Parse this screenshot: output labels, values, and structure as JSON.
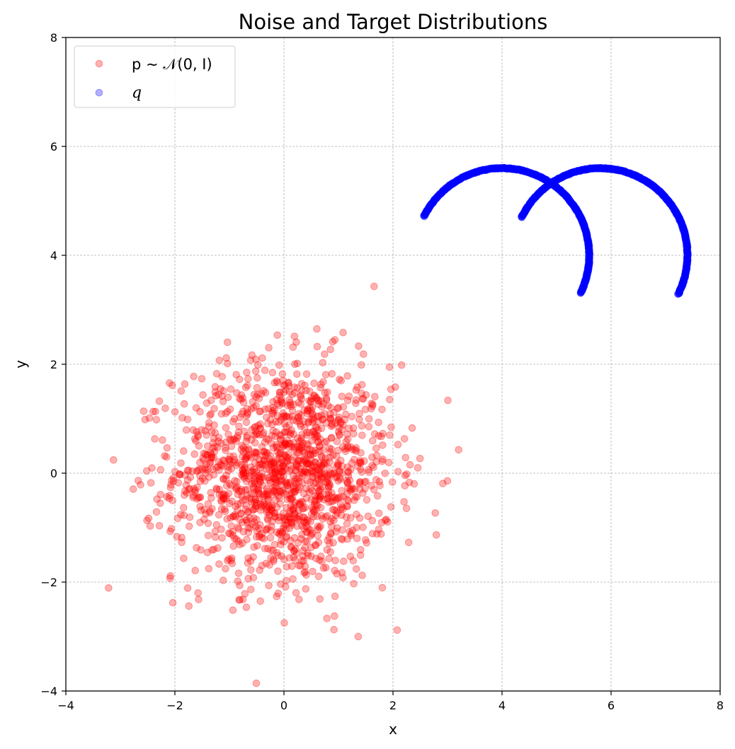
{
  "chart_data": {
    "type": "scatter",
    "title": "Noise and Target Distributions",
    "xlabel": "x",
    "ylabel": "y",
    "xlim": [
      -4,
      8
    ],
    "ylim": [
      -4,
      8
    ],
    "x_ticks": [
      "−4",
      "−2",
      "0",
      "2",
      "4",
      "6",
      "8"
    ],
    "y_ticks": [
      "−4",
      "−2",
      "0",
      "2",
      "4",
      "6",
      "8"
    ],
    "grid": true,
    "legend_position": "top-left",
    "series": [
      {
        "name": "p ∼ 𝒩(0, I)",
        "color": "#ff0000",
        "alpha": 0.3,
        "distribution": "gaussian",
        "mean": [
          0,
          0
        ],
        "std": [
          1,
          1
        ],
        "n_points": 1500
      },
      {
        "name": "q",
        "color": "#0000ff",
        "alpha": 0.3,
        "distribution": "two-moons",
        "upper_moon": {
          "center": [
            4.0,
            4.0
          ],
          "radius": 1.6,
          "from": [
            2.6,
            4.7
          ],
          "to": [
            5.45,
            3.3
          ]
        },
        "lower_moon": {
          "center": [
            5.8,
            4.0
          ],
          "radius": 1.6,
          "from": [
            4.35,
            4.7
          ],
          "to": [
            7.2,
            3.3
          ]
        },
        "n_points": 1500
      }
    ]
  }
}
